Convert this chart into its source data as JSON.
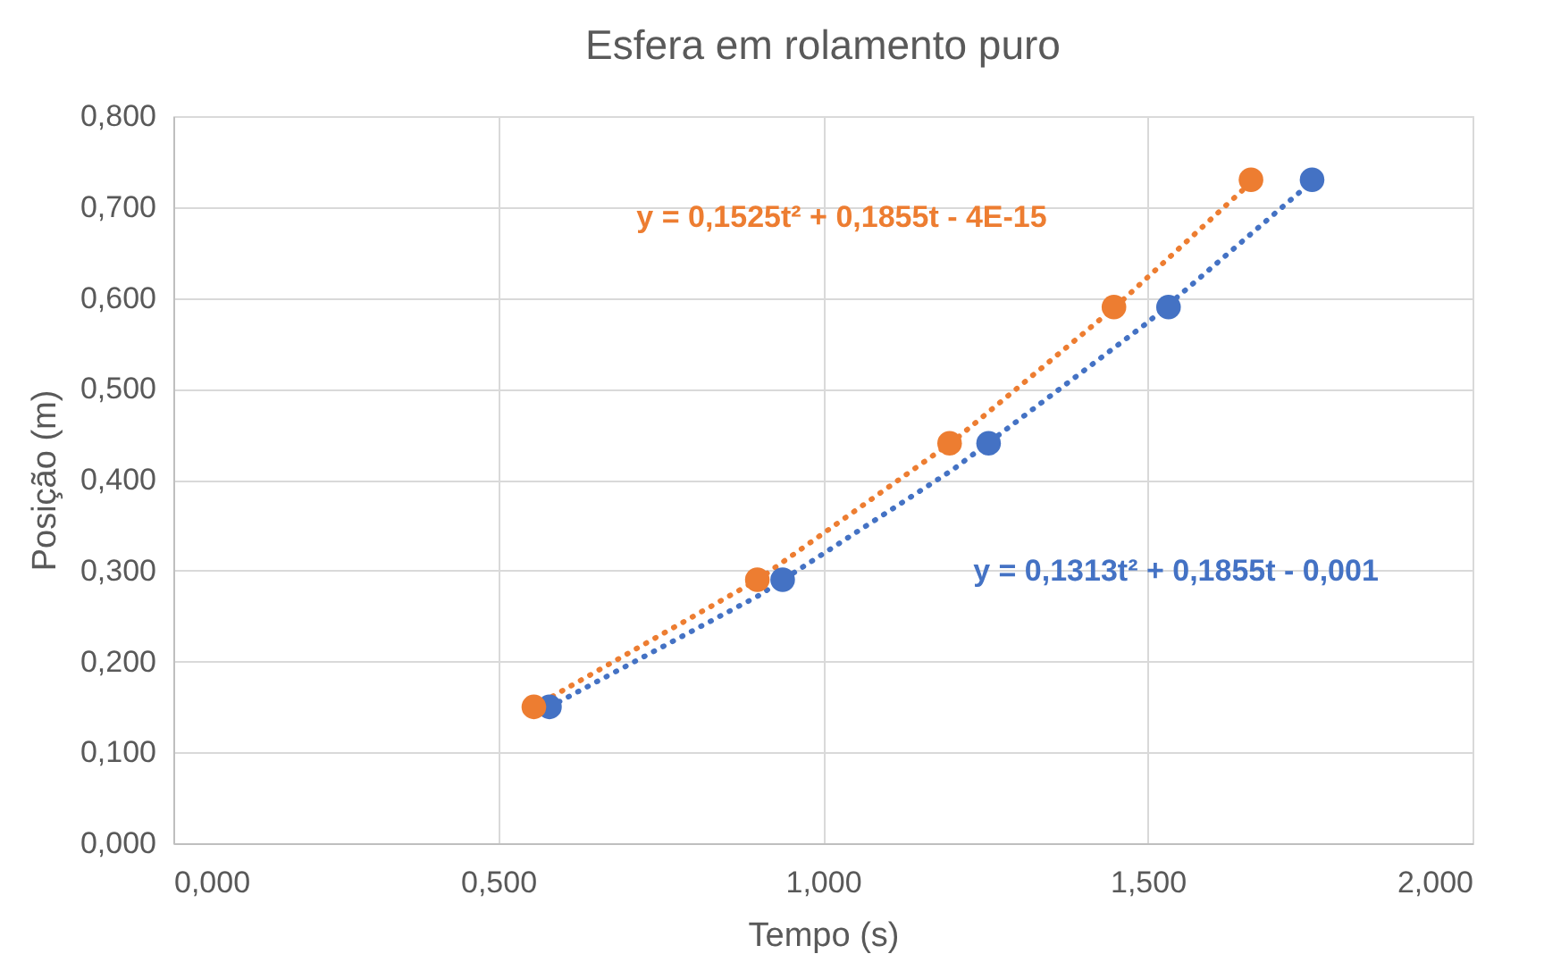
{
  "chart_data": {
    "type": "scatter",
    "title": "Esfera em rolamento puro",
    "xlabel": "Tempo (s)",
    "ylabel": "Posição (m)",
    "xlim": [
      0,
      2
    ],
    "ylim": [
      0,
      0.8
    ],
    "xticks": [
      {
        "value": 0,
        "label": "0,000"
      },
      {
        "value": 0.5,
        "label": "0,500"
      },
      {
        "value": 1,
        "label": "1,000"
      },
      {
        "value": 1.5,
        "label": "1,500"
      },
      {
        "value": 2,
        "label": "2,000"
      }
    ],
    "yticks": [
      {
        "value": 0,
        "label": "0,000"
      },
      {
        "value": 0.1,
        "label": "0,100"
      },
      {
        "value": 0.2,
        "label": "0,200"
      },
      {
        "value": 0.3,
        "label": "0,300"
      },
      {
        "value": 0.4,
        "label": "0,400"
      },
      {
        "value": 0.5,
        "label": "0,500"
      },
      {
        "value": 0.6,
        "label": "0,600"
      },
      {
        "value": 0.7,
        "label": "0,700"
      },
      {
        "value": 0.8,
        "label": "0,800"
      }
    ],
    "grid": true,
    "marker": "circle",
    "series": [
      {
        "type": "line",
        "line_style": "dotted",
        "marker": "none",
        "color": "#4472c4",
        "x": [
          0.579,
          0.9,
          1.2,
          1.5,
          1.753
        ],
        "values": [
          0.15,
          0.272,
          0.411,
          0.573,
          0.728
        ]
      },
      {
        "type": "line",
        "line_style": "dotted",
        "marker": "none",
        "color": "#ed7d31",
        "x": [
          0.555,
          0.9,
          1.2,
          1.45,
          1.659
        ],
        "values": [
          0.15,
          0.29,
          0.442,
          0.59,
          0.727
        ]
      },
      {
        "color": "#4472c4",
        "x": [
          0.579,
          0.938,
          1.255,
          1.532,
          1.753
        ],
        "values": [
          0.15,
          0.29,
          0.44,
          0.59,
          0.73
        ]
      },
      {
        "color": "#ed7d31",
        "x": [
          0.555,
          0.899,
          1.195,
          1.448,
          1.659
        ],
        "values": [
          0.15,
          0.29,
          0.44,
          0.59,
          0.73
        ]
      }
    ],
    "annotations": [
      "y = 0,1313t² + 0,1855t - 0,001",
      "y = 0,1525t² + 0,1855t - 4E-15"
    ]
  }
}
